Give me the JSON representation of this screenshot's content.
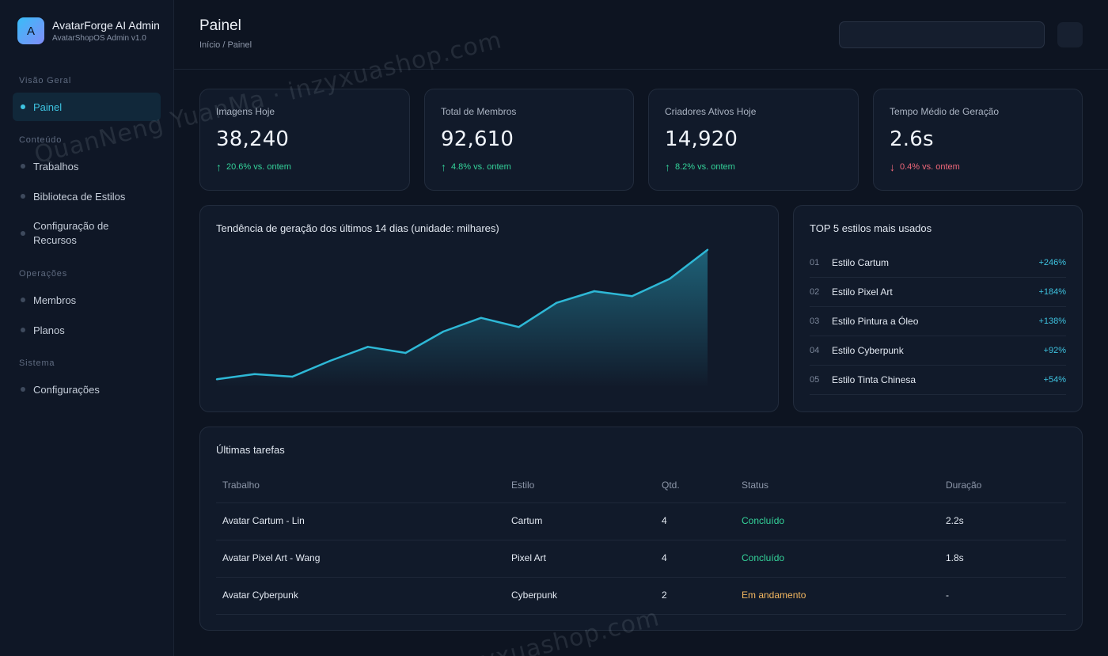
{
  "brand": {
    "logo_letter": "A",
    "title": "AvatarForge AI Admin",
    "subtitle": "AvatarShopOS Admin v1.0"
  },
  "sidebar": {
    "sections": [
      "Visão Geral",
      "Conteúdo",
      "Operações",
      "Sistema"
    ],
    "items": [
      {
        "label": "Painel",
        "active": true
      },
      {
        "label": "Trabalhos"
      },
      {
        "label": "Biblioteca de Estilos"
      },
      {
        "label": "Configuração de Recursos"
      },
      {
        "label": "Membros"
      },
      {
        "label": "Planos"
      },
      {
        "label": "Configurações"
      }
    ]
  },
  "header": {
    "title": "Painel",
    "breadcrumb": "Início / Painel",
    "search_value": ""
  },
  "stats": [
    {
      "label": "Imagens Hoje",
      "value": "38,240",
      "arrow": "↑",
      "delta": "20.6% vs. ontem",
      "trend": "up"
    },
    {
      "label": "Total de Membros",
      "value": "92,610",
      "arrow": "↑",
      "delta": "4.8% vs. ontem",
      "trend": "up"
    },
    {
      "label": "Criadores Ativos Hoje",
      "value": "14,920",
      "arrow": "↑",
      "delta": "8.2% vs. ontem",
      "trend": "up"
    },
    {
      "label": "Tempo Médio de Geração",
      "value": "2.6s",
      "arrow": "↓",
      "delta": "0.4% vs. ontem",
      "trend": "down"
    }
  ],
  "trend_card": {
    "title": "Tendência de geração dos últimos 14 dias (unidade: milhares)"
  },
  "chart_data": {
    "type": "area",
    "title": "Tendência de geração dos últimos 14 dias (unidade: milhares)",
    "x": [
      1,
      2,
      3,
      4,
      5,
      6,
      7,
      8,
      9,
      10,
      11,
      12,
      13,
      14
    ],
    "values": [
      3.2,
      5.2,
      4.2,
      10.2,
      15.5,
      13.2,
      21.3,
      26.5,
      23.0,
      32.2,
      36.6,
      34.7,
      41.3,
      52.3
    ],
    "ylim": [
      0,
      54
    ],
    "grid": false,
    "line_color": "#2eb8d6"
  },
  "top_styles": {
    "title": "TOP 5 estilos mais usados",
    "items": [
      {
        "rank": "01",
        "name": "Estilo Cartum",
        "pct": "+246%"
      },
      {
        "rank": "02",
        "name": "Estilo Pixel Art",
        "pct": "+184%"
      },
      {
        "rank": "03",
        "name": "Estilo Pintura a Óleo",
        "pct": "+138%"
      },
      {
        "rank": "04",
        "name": "Estilo Cyberpunk",
        "pct": "+92%"
      },
      {
        "rank": "05",
        "name": "Estilo Tinta Chinesa",
        "pct": "+54%"
      }
    ]
  },
  "tasks": {
    "title": "Últimas tarefas",
    "columns": [
      "Trabalho",
      "Estilo",
      "Qtd.",
      "Status",
      "Duração"
    ],
    "rows": [
      {
        "job": "Avatar Cartum - Lin",
        "style": "Cartum",
        "qty": "4",
        "status": "Concluído",
        "state": "done",
        "duration": "2.2s"
      },
      {
        "job": "Avatar Pixel Art - Wang",
        "style": "Pixel Art",
        "qty": "4",
        "status": "Concluído",
        "state": "done",
        "duration": "1.8s"
      },
      {
        "job": "Avatar Cyberpunk",
        "style": "Cyberpunk",
        "qty": "2",
        "status": "Em andamento",
        "state": "progress",
        "duration": "-"
      }
    ]
  },
  "watermark": {
    "text_top": "QuanNeng YuanMa · inzyxuashop.com",
    "text_bottom": "inzyxuashop.com"
  },
  "colors": {
    "accent": "#3ec3e0",
    "up": "#34d39a",
    "down": "#f0687a",
    "in_progress": "#f5b860",
    "background": "#0d1421"
  }
}
